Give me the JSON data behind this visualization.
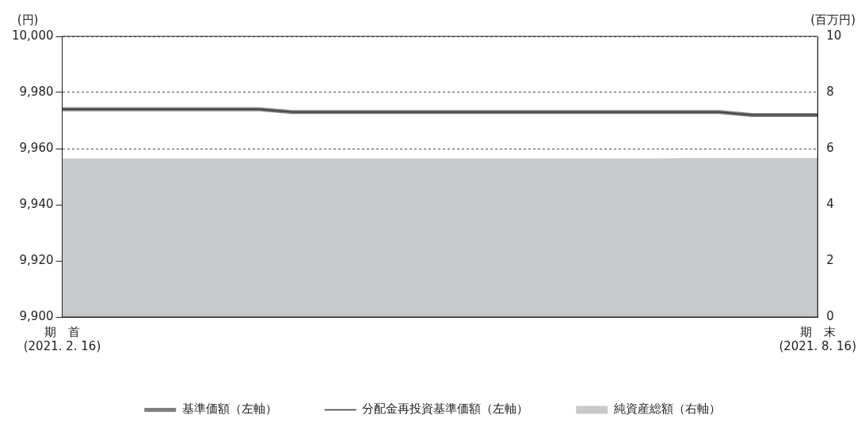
{
  "chart_data": {
    "type": "line",
    "ylabel": "(円)",
    "y2label": "(百万円)",
    "categories": [
      "期　首\n(2021. 2. 16)",
      null,
      null,
      null,
      null,
      null,
      null,
      null,
      null,
      null,
      null,
      null,
      null,
      null,
      null,
      null,
      null,
      null,
      null,
      null,
      null,
      null,
      null,
      "期　末\n(2021. 8. 16)"
    ],
    "series": [
      {
        "name": "基準価額（左軸）",
        "color": "#7f7f7f",
        "values": [
          9974,
          9974,
          9974,
          9974,
          9974,
          9974,
          9974,
          9973,
          9973,
          9973,
          9973,
          9973,
          9973,
          9973,
          9973,
          9973,
          9973,
          9973,
          9973,
          9973,
          9973,
          9972,
          9972,
          9972
        ]
      },
      {
        "name": "分配金再投資基準価額（左軸）",
        "color": "#3a3a3a",
        "values": [
          9974,
          9974,
          9974,
          9974,
          9974,
          9974,
          9974,
          9973,
          9973,
          9973,
          9973,
          9973,
          9973,
          9973,
          9973,
          9973,
          9973,
          9973,
          9973,
          9973,
          9973,
          9972,
          9972,
          9972
        ]
      },
      {
        "name": "純資産総額（右軸）",
        "type": "area",
        "axis": "y2",
        "color": "#c8c9cb",
        "values": [
          5.65,
          5.65,
          5.65,
          5.65,
          5.65,
          5.65,
          5.65,
          5.65,
          5.65,
          5.65,
          5.65,
          5.65,
          5.65,
          5.65,
          5.65,
          5.65,
          5.65,
          5.65,
          5.65,
          5.66,
          5.66,
          5.66,
          5.66,
          5.66
        ]
      }
    ],
    "ylim": [
      9900,
      10000
    ],
    "yticks": [
      {
        "value": 9900,
        "label": "9,900"
      },
      {
        "value": 9920,
        "label": "9,920"
      },
      {
        "value": 9940,
        "label": "9,940"
      },
      {
        "value": 9960,
        "label": "9,960"
      },
      {
        "value": 9980,
        "label": "9,980"
      },
      {
        "value": 10000,
        "label": "10,000"
      }
    ],
    "y2lim": [
      0,
      10
    ],
    "y2ticks": [
      0,
      2,
      4,
      6,
      8,
      10
    ],
    "grid": "y",
    "line_style": "solid",
    "marker": "none",
    "legend": "bottom"
  }
}
